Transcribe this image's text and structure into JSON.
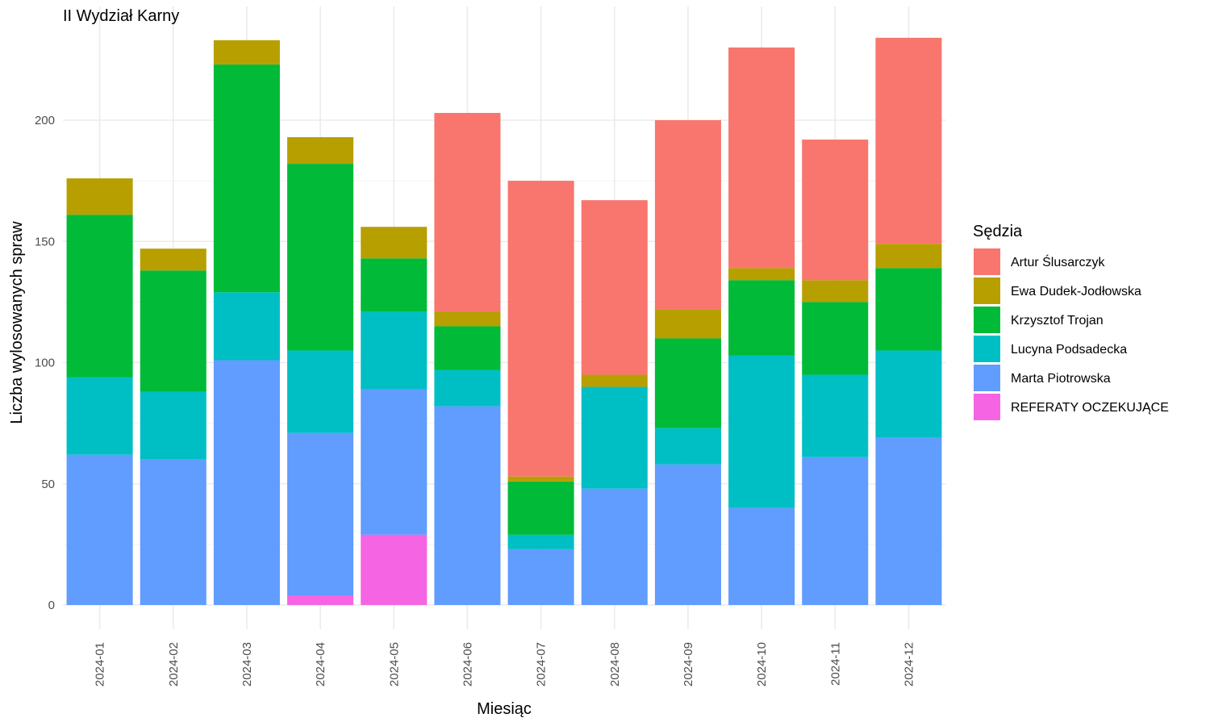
{
  "chart_data": {
    "type": "bar",
    "stacked": true,
    "title": "II Wydział Karny",
    "xlabel": "Miesiąc",
    "ylabel": "Liczba wylosowanych spraw",
    "ylim": [
      0,
      235
    ],
    "yticks": [
      0,
      50,
      100,
      150,
      200
    ],
    "grid": true,
    "legend": {
      "title": "Sędzia",
      "placement": "right"
    },
    "categories": [
      "2024-01",
      "2024-02",
      "2024-03",
      "2024-04",
      "2024-05",
      "2024-06",
      "2024-07",
      "2024-08",
      "2024-09",
      "2024-10",
      "2024-11",
      "2024-12"
    ],
    "stack_order": [
      "REFERATY OCZEKUJĄCE",
      "Marta Piotrowska",
      "Lucyna Podsadecka",
      "Krzysztof Trojan",
      "Ewa Dudek-Jodłowska",
      "Artur Ślusarczyk"
    ],
    "series": [
      {
        "name": "Artur Ślusarczyk",
        "color": "#F8766D",
        "values": [
          0,
          0,
          0,
          0,
          0,
          82,
          122,
          72,
          78,
          91,
          58,
          85
        ]
      },
      {
        "name": "Ewa Dudek-Jodłowska",
        "color": "#B79F00",
        "values": [
          15,
          9,
          10,
          11,
          13,
          6,
          2,
          5,
          12,
          5,
          9,
          10
        ]
      },
      {
        "name": "Krzysztof Trojan",
        "color": "#00BA38",
        "values": [
          67,
          50,
          94,
          77,
          22,
          18,
          22,
          0,
          37,
          31,
          30,
          34
        ]
      },
      {
        "name": "Lucyna Podsadecka",
        "color": "#00BFC4",
        "values": [
          32,
          28,
          28,
          34,
          32,
          15,
          6,
          42,
          15,
          63,
          34,
          36
        ]
      },
      {
        "name": "Marta Piotrowska",
        "color": "#619CFF",
        "values": [
          62,
          60,
          101,
          67,
          60,
          82,
          23,
          48,
          58,
          40,
          61,
          69
        ]
      },
      {
        "name": "REFERATY OCZEKUJĄCE",
        "color": "#F564E3",
        "values": [
          0,
          0,
          0,
          4,
          29,
          0,
          0,
          0,
          0,
          0,
          0,
          0
        ]
      }
    ]
  }
}
